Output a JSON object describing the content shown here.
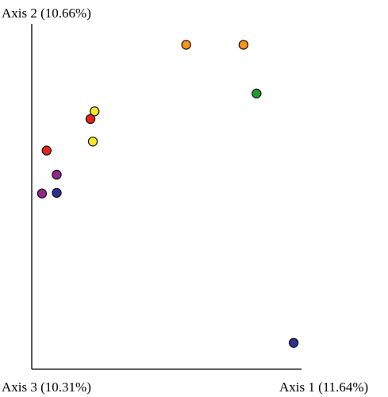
{
  "chart_data": {
    "type": "scatter",
    "title": "",
    "axis_labels": {
      "y": "Axis 2 (10.66%)",
      "x_left": "Axis 3 (10.31%)",
      "x_right": "Axis 1 (11.64%)"
    },
    "xlim": [
      0,
      100
    ],
    "ylim": [
      0,
      100
    ],
    "grid": false,
    "legend": "none",
    "points": [
      {
        "x": 57.7,
        "y": 97.4,
        "color": "#F7941D"
      },
      {
        "x": 79.8,
        "y": 97.4,
        "color": "#F7941D"
      },
      {
        "x": 84.8,
        "y": 82.1,
        "color": "#1E9B2E"
      },
      {
        "x": 22.4,
        "y": 76.5,
        "color": "#F5E52C"
      },
      {
        "x": 20.8,
        "y": 74.1,
        "color": "#E8221A"
      },
      {
        "x": 21.7,
        "y": 67.0,
        "color": "#F5E52C"
      },
      {
        "x": 3.9,
        "y": 64.2,
        "color": "#E8221A"
      },
      {
        "x": 7.8,
        "y": 56.6,
        "color": "#92278F"
      },
      {
        "x": 2.1,
        "y": 50.7,
        "color": "#92278F"
      },
      {
        "x": 7.8,
        "y": 50.9,
        "color": "#2E3192"
      },
      {
        "x": 99.1,
        "y": 3.8,
        "color": "#2E3192"
      }
    ]
  }
}
